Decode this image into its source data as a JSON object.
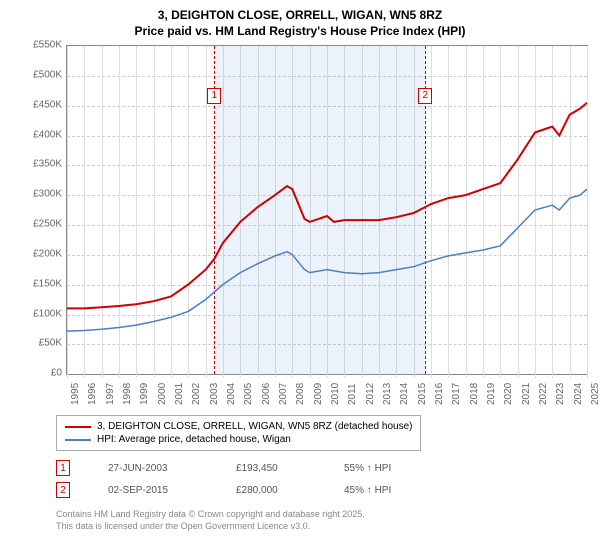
{
  "title_line1": "3, DEIGHTON CLOSE, ORRELL, WIGAN, WN5 8RZ",
  "title_line2": "Price paid vs. HM Land Registry's House Price Index (HPI)",
  "chart": {
    "type": "line",
    "ylim": [
      0,
      550
    ],
    "ytick_step": 50,
    "y_unit_suffix": "K",
    "y_prefix": "£",
    "xlim": [
      1995,
      2025
    ],
    "xtick_step": 1,
    "background_color": "#ffffff",
    "grid_color": "#cccccc",
    "shade_start": 2003.5,
    "shade_end": 2015.67,
    "shade_color": "rgba(100,150,220,0.12)",
    "markers": [
      {
        "id": "1",
        "x": 2003.5,
        "box_y": 480
      },
      {
        "id": "2",
        "x": 2015.67,
        "box_y": 480
      }
    ],
    "series": [
      {
        "name": "3, DEIGHTON CLOSE, ORRELL, WIGAN, WN5 8RZ (detached house)",
        "color": "#cc0000",
        "width": 2,
        "data": [
          [
            1995,
            110
          ],
          [
            1996,
            110
          ],
          [
            1997,
            112
          ],
          [
            1998,
            114
          ],
          [
            1999,
            117
          ],
          [
            2000,
            122
          ],
          [
            2001,
            130
          ],
          [
            2002,
            150
          ],
          [
            2003,
            175
          ],
          [
            2003.5,
            193
          ],
          [
            2004,
            220
          ],
          [
            2005,
            255
          ],
          [
            2006,
            280
          ],
          [
            2007,
            300
          ],
          [
            2007.7,
            315
          ],
          [
            2008,
            310
          ],
          [
            2008.7,
            260
          ],
          [
            2009,
            255
          ],
          [
            2010,
            265
          ],
          [
            2010.4,
            255
          ],
          [
            2011,
            258
          ],
          [
            2012,
            258
          ],
          [
            2013,
            258
          ],
          [
            2014,
            263
          ],
          [
            2015,
            270
          ],
          [
            2015.67,
            280
          ],
          [
            2016,
            285
          ],
          [
            2017,
            295
          ],
          [
            2018,
            300
          ],
          [
            2019,
            310
          ],
          [
            2020,
            320
          ],
          [
            2021,
            360
          ],
          [
            2022,
            405
          ],
          [
            2023,
            415
          ],
          [
            2023.4,
            400
          ],
          [
            2024,
            435
          ],
          [
            2024.6,
            445
          ],
          [
            2025,
            455
          ]
        ]
      },
      {
        "name": "HPI: Average price, detached house, Wigan",
        "color": "#4a7fc4",
        "width": 1.5,
        "data": [
          [
            1995,
            72
          ],
          [
            1996,
            73
          ],
          [
            1997,
            75
          ],
          [
            1998,
            78
          ],
          [
            1999,
            82
          ],
          [
            2000,
            88
          ],
          [
            2001,
            95
          ],
          [
            2002,
            105
          ],
          [
            2003,
            125
          ],
          [
            2004,
            150
          ],
          [
            2005,
            170
          ],
          [
            2006,
            185
          ],
          [
            2007,
            198
          ],
          [
            2007.7,
            205
          ],
          [
            2008,
            200
          ],
          [
            2008.7,
            175
          ],
          [
            2009,
            170
          ],
          [
            2010,
            175
          ],
          [
            2011,
            170
          ],
          [
            2012,
            168
          ],
          [
            2013,
            170
          ],
          [
            2014,
            175
          ],
          [
            2015,
            180
          ],
          [
            2016,
            190
          ],
          [
            2017,
            198
          ],
          [
            2018,
            203
          ],
          [
            2019,
            208
          ],
          [
            2020,
            215
          ],
          [
            2021,
            245
          ],
          [
            2022,
            275
          ],
          [
            2023,
            283
          ],
          [
            2023.4,
            275
          ],
          [
            2024,
            295
          ],
          [
            2024.6,
            300
          ],
          [
            2025,
            310
          ]
        ]
      }
    ]
  },
  "legend": [
    {
      "color": "#cc0000",
      "label": "3, DEIGHTON CLOSE, ORRELL, WIGAN, WN5 8RZ (detached house)"
    },
    {
      "color": "#4a7fc4",
      "label": "HPI: Average price, detached house, Wigan"
    }
  ],
  "transactions": [
    {
      "id": "1",
      "date": "27-JUN-2003",
      "price": "£193,450",
      "delta": "55% ↑ HPI"
    },
    {
      "id": "2",
      "date": "02-SEP-2015",
      "price": "£280,000",
      "delta": "45% ↑ HPI"
    }
  ],
  "footer_line1": "Contains HM Land Registry data © Crown copyright and database right 2025.",
  "footer_line2": "This data is licensed under the Open Government Licence v3.0."
}
